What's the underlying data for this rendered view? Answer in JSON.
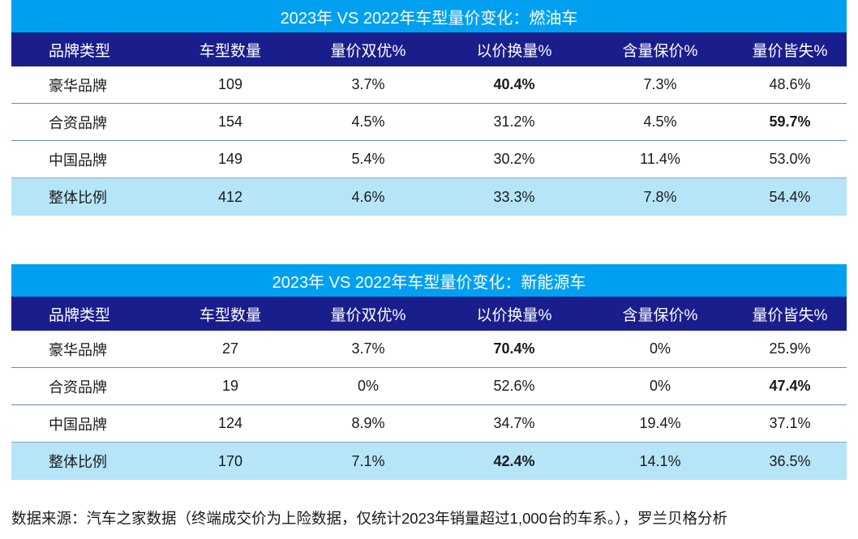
{
  "tables": [
    {
      "title": "2023年 VS 2022年车型量价变化：燃油车",
      "headers": [
        "品牌类型",
        "车型数量",
        "量价双优%",
        "以价换量%",
        "含量保价%",
        "量价皆失%"
      ],
      "rows": [
        {
          "cells": [
            "豪华品牌",
            "109",
            "3.7%",
            "40.4%",
            "7.3%",
            "48.6%"
          ],
          "bold": [
            false,
            false,
            false,
            true,
            false,
            false
          ]
        },
        {
          "cells": [
            "合资品牌",
            "154",
            "4.5%",
            "31.2%",
            "4.5%",
            "59.7%"
          ],
          "bold": [
            false,
            false,
            false,
            false,
            false,
            true
          ]
        },
        {
          "cells": [
            "中国品牌",
            "149",
            "5.4%",
            "30.2%",
            "11.4%",
            "53.0%"
          ],
          "bold": [
            false,
            false,
            false,
            false,
            false,
            false
          ]
        },
        {
          "cells": [
            "整体比例",
            "412",
            "4.6%",
            "33.3%",
            "7.8%",
            "54.4%"
          ],
          "bold": [
            false,
            false,
            false,
            false,
            false,
            false
          ]
        }
      ]
    },
    {
      "title": "2023年 VS 2022年车型量价变化：新能源车",
      "headers": [
        "品牌类型",
        "车型数量",
        "量价双优%",
        "以价换量%",
        "含量保价%",
        "量价皆失%"
      ],
      "rows": [
        {
          "cells": [
            "豪华品牌",
            "27",
            "3.7%",
            "70.4%",
            "0%",
            "25.9%"
          ],
          "bold": [
            false,
            false,
            false,
            true,
            false,
            false
          ]
        },
        {
          "cells": [
            "合资品牌",
            "19",
            "0%",
            "52.6%",
            "0%",
            "47.4%"
          ],
          "bold": [
            false,
            false,
            false,
            false,
            false,
            true
          ]
        },
        {
          "cells": [
            "中国品牌",
            "124",
            "8.9%",
            "34.7%",
            "19.4%",
            "37.1%"
          ],
          "bold": [
            false,
            false,
            false,
            false,
            false,
            false
          ]
        },
        {
          "cells": [
            "整体比例",
            "170",
            "7.1%",
            "42.4%",
            "14.1%",
            "36.5%"
          ],
          "bold": [
            false,
            false,
            false,
            true,
            false,
            false
          ]
        }
      ]
    }
  ],
  "source_note": "数据来源：汽车之家数据（终端成交价为上险数据，仅统计2023年销量超过1,000台的车系。），罗兰贝格分析",
  "colors": {
    "title_bg": "#00a0f0",
    "header_bg": "#1a1e8c",
    "total_bg": "#b6e5f8"
  }
}
